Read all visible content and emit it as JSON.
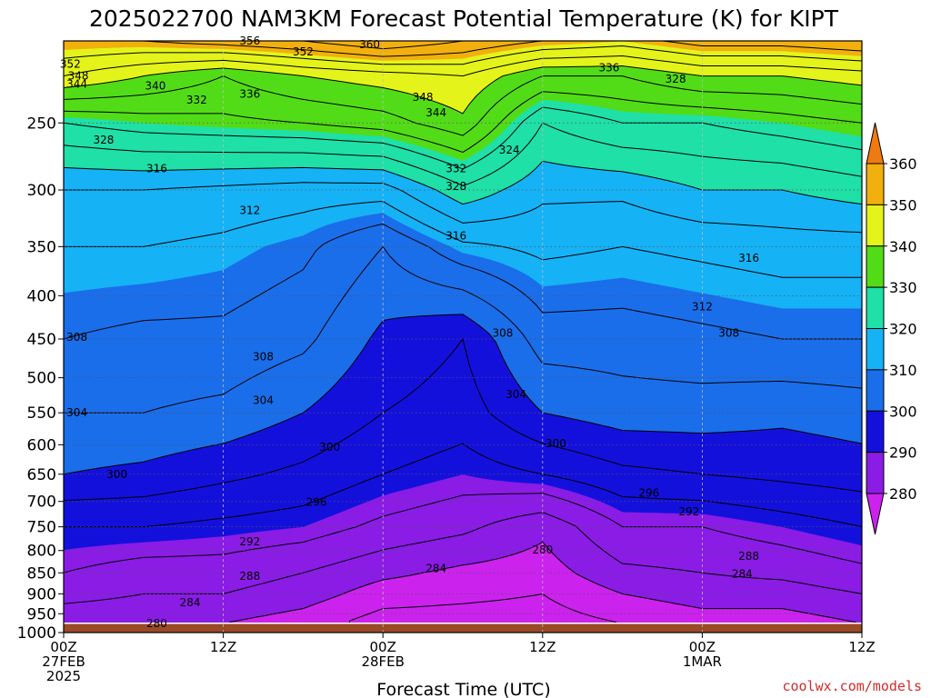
{
  "page": {
    "title": "2025022700 NAM3KM Forecast Potential Temperature (K) for KIPT",
    "credit": "coolwx.com/models"
  },
  "colors": {
    "ground": "#9a4a26",
    "grid": "#555555",
    "fill_levels": [
      {
        "min": 270,
        "max": 280,
        "color": "#cc22ee"
      },
      {
        "min": 280,
        "max": 290,
        "color": "#8a1ce6"
      },
      {
        "min": 290,
        "max": 300,
        "color": "#1410dc"
      },
      {
        "min": 300,
        "max": 310,
        "color": "#1a6eea"
      },
      {
        "min": 310,
        "max": 320,
        "color": "#16b2f6"
      },
      {
        "min": 320,
        "max": 330,
        "color": "#1fe0a6"
      },
      {
        "min": 330,
        "max": 340,
        "color": "#52dc18"
      },
      {
        "min": 340,
        "max": 350,
        "color": "#e4f41a"
      },
      {
        "min": 350,
        "max": 360,
        "color": "#f2b00e"
      },
      {
        "min": 360,
        "max": 372,
        "color": "#f07a12"
      }
    ]
  },
  "chart_data": {
    "type": "heatmap",
    "title": "2025022700 NAM3KM Forecast Potential Temperature (K) for KIPT",
    "xlabel": "Forecast Time (UTC)",
    "ylabel": "",
    "x_unit": "forecast hour",
    "xlim": [
      0,
      60
    ],
    "ylim": [
      1000,
      200
    ],
    "y_scale": "log",
    "y_ticks": [
      250,
      300,
      350,
      400,
      450,
      500,
      550,
      600,
      650,
      700,
      750,
      800,
      850,
      900,
      950,
      1000
    ],
    "x_ticks": [
      {
        "hour": 0,
        "lines": [
          "00Z",
          "27FEB",
          "2025"
        ]
      },
      {
        "hour": 12,
        "lines": [
          "12Z"
        ]
      },
      {
        "hour": 24,
        "lines": [
          "00Z",
          "28FEB"
        ]
      },
      {
        "hour": 36,
        "lines": [
          "12Z"
        ]
      },
      {
        "hour": 48,
        "lines": [
          "00Z",
          "1MAR"
        ]
      },
      {
        "hour": 60,
        "lines": [
          "12Z"
        ]
      }
    ],
    "grid": true,
    "colorbar": {
      "ticks": [
        360,
        350,
        340,
        330,
        320,
        310,
        300,
        290,
        280
      ],
      "placement": "right"
    },
    "contour_interval": 4,
    "ground_pressure": 975,
    "isentrope_profiles": [
      {
        "hour": 0,
        "points": [
          [
            975,
            280
          ],
          [
            900,
            286
          ],
          [
            850,
            288
          ],
          [
            750,
            292
          ],
          [
            650,
            300
          ],
          [
            550,
            304
          ],
          [
            450,
            308
          ],
          [
            350,
            312
          ],
          [
            300,
            316
          ],
          [
            250,
            328
          ],
          [
            220,
            344
          ],
          [
            200,
            352
          ]
        ]
      },
      {
        "hour": 6,
        "points": [
          [
            975,
            280
          ],
          [
            900,
            284
          ],
          [
            850,
            286
          ],
          [
            750,
            292
          ],
          [
            650,
            299
          ],
          [
            550,
            304
          ],
          [
            450,
            307
          ],
          [
            350,
            312
          ],
          [
            300,
            316
          ],
          [
            250,
            330
          ],
          [
            220,
            340
          ],
          [
            200,
            352
          ]
        ]
      },
      {
        "hour": 12,
        "points": [
          [
            975,
            280
          ],
          [
            900,
            284
          ],
          [
            850,
            286
          ],
          [
            750,
            291
          ],
          [
            650,
            297
          ],
          [
            550,
            303
          ],
          [
            450,
            307
          ],
          [
            350,
            311
          ],
          [
            300,
            315
          ],
          [
            250,
            331
          ],
          [
            220,
            336
          ],
          [
            200,
            354
          ]
        ]
      },
      {
        "hour": 18,
        "points": [
          [
            975,
            278
          ],
          [
            900,
            282
          ],
          [
            850,
            284
          ],
          [
            750,
            290
          ],
          [
            650,
            295
          ],
          [
            550,
            300
          ],
          [
            450,
            305
          ],
          [
            350,
            309
          ],
          [
            300,
            314
          ],
          [
            250,
            332
          ],
          [
            220,
            340
          ],
          [
            200,
            356
          ]
        ]
      },
      {
        "hour": 24,
        "points": [
          [
            975,
            274
          ],
          [
            900,
            278
          ],
          [
            850,
            281
          ],
          [
            750,
            287
          ],
          [
            650,
            292
          ],
          [
            550,
            296
          ],
          [
            450,
            299
          ],
          [
            350,
            304
          ],
          [
            300,
            314
          ],
          [
            250,
            334
          ],
          [
            220,
            342
          ],
          [
            200,
            360
          ]
        ]
      },
      {
        "hour": 30,
        "points": [
          [
            975,
            274
          ],
          [
            900,
            277
          ],
          [
            850,
            279
          ],
          [
            750,
            285
          ],
          [
            650,
            290
          ],
          [
            550,
            294
          ],
          [
            450,
            296
          ],
          [
            350,
            311
          ],
          [
            300,
            323
          ],
          [
            250,
            339
          ],
          [
            220,
            344
          ],
          [
            200,
            356
          ]
        ]
      },
      {
        "hour": 36,
        "points": [
          [
            975,
            274
          ],
          [
            900,
            276
          ],
          [
            850,
            278
          ],
          [
            750,
            281
          ],
          [
            650,
            292
          ],
          [
            550,
            300
          ],
          [
            450,
            306
          ],
          [
            350,
            313
          ],
          [
            300,
            317
          ],
          [
            250,
            324
          ],
          [
            220,
            336
          ],
          [
            200,
            352
          ]
        ]
      },
      {
        "hour": 42,
        "points": [
          [
            975,
            276
          ],
          [
            900,
            280
          ],
          [
            850,
            283
          ],
          [
            750,
            288
          ],
          [
            650,
            295
          ],
          [
            550,
            302
          ],
          [
            450,
            306
          ],
          [
            350,
            312
          ],
          [
            300,
            317
          ],
          [
            250,
            328
          ],
          [
            220,
            336
          ],
          [
            200,
            350
          ]
        ]
      },
      {
        "hour": 48,
        "points": [
          [
            975,
            278
          ],
          [
            900,
            282
          ],
          [
            850,
            284
          ],
          [
            750,
            288
          ],
          [
            650,
            296
          ],
          [
            550,
            302
          ],
          [
            450,
            307
          ],
          [
            350,
            313
          ],
          [
            300,
            320
          ],
          [
            250,
            328
          ],
          [
            220,
            340
          ],
          [
            200,
            354
          ]
        ]
      },
      {
        "hour": 54,
        "points": [
          [
            975,
            278
          ],
          [
            900,
            282
          ],
          [
            850,
            285
          ],
          [
            750,
            290
          ],
          [
            650,
            297
          ],
          [
            550,
            301
          ],
          [
            450,
            308
          ],
          [
            350,
            314
          ],
          [
            300,
            320
          ],
          [
            250,
            330
          ],
          [
            220,
            340
          ],
          [
            200,
            354
          ]
        ]
      },
      {
        "hour": 60,
        "points": [
          [
            975,
            280
          ],
          [
            900,
            284
          ],
          [
            850,
            287
          ],
          [
            750,
            292
          ],
          [
            650,
            298
          ],
          [
            550,
            302
          ],
          [
            450,
            308
          ],
          [
            350,
            314
          ],
          [
            300,
            322
          ],
          [
            250,
            332
          ],
          [
            220,
            342
          ],
          [
            200,
            356
          ]
        ]
      }
    ],
    "contour_labels": [
      {
        "hour": 0.5,
        "p": 213,
        "text": "352"
      },
      {
        "hour": 1.1,
        "p": 220,
        "text": "348"
      },
      {
        "hour": 1.0,
        "p": 225,
        "text": "344"
      },
      {
        "hour": 6.9,
        "p": 226,
        "text": "340"
      },
      {
        "hour": 10.0,
        "p": 235,
        "text": "332"
      },
      {
        "hour": 14.0,
        "p": 231,
        "text": "336"
      },
      {
        "hour": 14.0,
        "p": 200,
        "text": "356"
      },
      {
        "hour": 18.0,
        "p": 206,
        "text": "352"
      },
      {
        "hour": 23.0,
        "p": 202,
        "text": "360"
      },
      {
        "hour": 27.0,
        "p": 233,
        "text": "348"
      },
      {
        "hour": 28.0,
        "p": 243,
        "text": "344"
      },
      {
        "hour": 29.5,
        "p": 283,
        "text": "332"
      },
      {
        "hour": 29.5,
        "p": 297,
        "text": "328"
      },
      {
        "hour": 29.5,
        "p": 340,
        "text": "316"
      },
      {
        "hour": 33.5,
        "p": 269,
        "text": "324"
      },
      {
        "hour": 41.0,
        "p": 215,
        "text": "336"
      },
      {
        "hour": 46.0,
        "p": 222,
        "text": "328"
      },
      {
        "hour": 51.5,
        "p": 361,
        "text": "316"
      },
      {
        "hour": 48.0,
        "p": 412,
        "text": "312"
      },
      {
        "hour": 50.0,
        "p": 443,
        "text": "308"
      },
      {
        "hour": 3.0,
        "p": 262,
        "text": "328"
      },
      {
        "hour": 7.0,
        "p": 283,
        "text": "316"
      },
      {
        "hour": 14.0,
        "p": 317,
        "text": "312"
      },
      {
        "hour": 1.0,
        "p": 448,
        "text": "308"
      },
      {
        "hour": 15.0,
        "p": 472,
        "text": "308"
      },
      {
        "hour": 33.0,
        "p": 443,
        "text": "308"
      },
      {
        "hour": 1.0,
        "p": 550,
        "text": "304"
      },
      {
        "hour": 15.0,
        "p": 532,
        "text": "304"
      },
      {
        "hour": 34.0,
        "p": 523,
        "text": "304"
      },
      {
        "hour": 20.0,
        "p": 604,
        "text": "300"
      },
      {
        "hour": 37.0,
        "p": 598,
        "text": "300"
      },
      {
        "hour": 4.0,
        "p": 650,
        "text": "300"
      },
      {
        "hour": 19.0,
        "p": 701,
        "text": "296"
      },
      {
        "hour": 44.0,
        "p": 684,
        "text": "296"
      },
      {
        "hour": 47.0,
        "p": 720,
        "text": "292"
      },
      {
        "hour": 14.0,
        "p": 781,
        "text": "292"
      },
      {
        "hour": 14.0,
        "p": 858,
        "text": "288"
      },
      {
        "hour": 51.5,
        "p": 812,
        "text": "288"
      },
      {
        "hour": 28.0,
        "p": 840,
        "text": "284"
      },
      {
        "hour": 51.0,
        "p": 853,
        "text": "284"
      },
      {
        "hour": 9.5,
        "p": 922,
        "text": "284"
      },
      {
        "hour": 36.0,
        "p": 799,
        "text": "280"
      },
      {
        "hour": 7.0,
        "p": 976,
        "text": "280"
      }
    ]
  }
}
